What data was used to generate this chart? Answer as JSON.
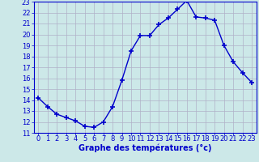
{
  "hours": [
    0,
    1,
    2,
    3,
    4,
    5,
    6,
    7,
    8,
    9,
    10,
    11,
    12,
    13,
    14,
    15,
    16,
    17,
    18,
    19,
    20,
    21,
    22,
    23
  ],
  "temps": [
    14.2,
    13.4,
    12.7,
    12.4,
    12.1,
    11.6,
    11.5,
    12.0,
    13.4,
    15.8,
    18.5,
    19.9,
    19.9,
    20.9,
    21.5,
    22.3,
    23.1,
    21.6,
    21.5,
    21.3,
    19.0,
    17.5,
    16.5,
    15.6
  ],
  "line_color": "#0000cc",
  "marker": "+",
  "marker_size": 4,
  "marker_linewidth": 1.2,
  "bg_color": "#cce8e8",
  "grid_color": "#b0b0c8",
  "xlabel": "Graphe des températures (°c)",
  "xlabel_color": "#0000cc",
  "xlabel_fontsize": 7,
  "tick_color": "#0000cc",
  "tick_fontsize": 6,
  "ylim": [
    11,
    23
  ],
  "yticks": [
    11,
    12,
    13,
    14,
    15,
    16,
    17,
    18,
    19,
    20,
    21,
    22,
    23
  ],
  "xlim": [
    -0.5,
    23.5
  ],
  "xticks": [
    0,
    1,
    2,
    3,
    4,
    5,
    6,
    7,
    8,
    9,
    10,
    11,
    12,
    13,
    14,
    15,
    16,
    17,
    18,
    19,
    20,
    21,
    22,
    23
  ],
  "linewidth": 1.0
}
